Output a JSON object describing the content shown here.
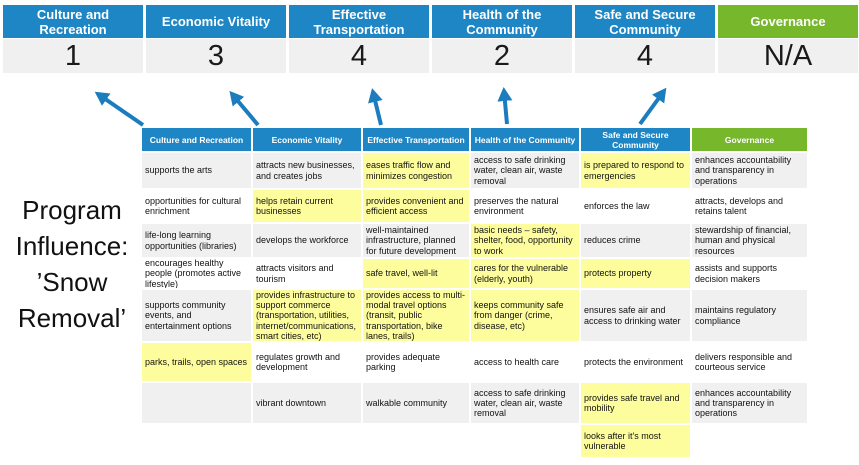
{
  "program_label": "Program Influence: ’Snow Removal’",
  "summary": {
    "columns": [
      {
        "label": "Culture and Recreation",
        "score": "1",
        "type": "blue"
      },
      {
        "label": "Economic Vitality",
        "score": "3",
        "type": "blue"
      },
      {
        "label": "Effective Transportation",
        "score": "4",
        "type": "blue"
      },
      {
        "label": "Health of the Community",
        "score": "2",
        "type": "blue"
      },
      {
        "label": "Safe and Secure Community",
        "score": "4",
        "type": "blue"
      },
      {
        "label": "Governance",
        "score": "N/A",
        "type": "green"
      }
    ]
  },
  "matrix": {
    "headers": [
      {
        "label": "Culture and Recreation",
        "type": "blue"
      },
      {
        "label": "Economic Vitality",
        "type": "blue"
      },
      {
        "label": "Effective Transportation",
        "type": "blue"
      },
      {
        "label": "Health of the Community",
        "type": "blue"
      },
      {
        "label": "Safe and Secure Community",
        "type": "blue"
      },
      {
        "label": "Governance",
        "type": "green"
      }
    ],
    "rows": [
      {
        "cells": [
          {
            "text": "supports the arts",
            "highlight": false
          },
          {
            "text": "attracts new businesses, and creates jobs",
            "highlight": false
          },
          {
            "text": "eases traffic flow and minimizes congestion",
            "highlight": true
          },
          {
            "text": "access to safe drinking water, clean air, waste removal",
            "highlight": false
          },
          {
            "text": "is prepared to respond to emergencies",
            "highlight": true
          },
          {
            "text": "enhances accountability and transparency in operations",
            "highlight": false
          }
        ]
      },
      {
        "cells": [
          {
            "text": "opportunities for cultural enrichment",
            "highlight": false
          },
          {
            "text": "helps retain current businesses",
            "highlight": true
          },
          {
            "text": "provides convenient and efficient access",
            "highlight": true
          },
          {
            "text": "preserves the natural environment",
            "highlight": false
          },
          {
            "text": "enforces the law",
            "highlight": false
          },
          {
            "text": "attracts, develops and retains talent",
            "highlight": false
          }
        ]
      },
      {
        "cells": [
          {
            "text": "life-long learning opportunities (libraries)",
            "highlight": false
          },
          {
            "text": "develops the workforce",
            "highlight": false
          },
          {
            "text": "well-maintained infrastructure, planned for future development",
            "highlight": false
          },
          {
            "text": "basic needs – safety, shelter, food, opportunity to work",
            "highlight": true
          },
          {
            "text": "reduces crime",
            "highlight": false
          },
          {
            "text": "stewardship of financial, human and physical resources",
            "highlight": false
          }
        ]
      },
      {
        "cells": [
          {
            "text": "encourages healthy people (promotes active lifestyle)",
            "highlight": false
          },
          {
            "text": "attracts visitors and tourism",
            "highlight": false
          },
          {
            "text": "safe travel, well-lit",
            "highlight": true
          },
          {
            "text": "cares for the vulnerable (elderly, youth)",
            "highlight": true
          },
          {
            "text": "protects property",
            "highlight": true
          },
          {
            "text": "assists and supports decision makers",
            "highlight": false
          }
        ]
      },
      {
        "cells": [
          {
            "text": "supports community events, and entertainment options",
            "highlight": false
          },
          {
            "text": "provides infrastructure to support commerce (transportation, utilities, internet/communications, smart cities, etc)",
            "highlight": true
          },
          {
            "text": "provides access to multi-modal travel options (transit, public transportation, bike lanes, trails)",
            "highlight": true
          },
          {
            "text": "keeps community safe from danger (crime, disease, etc)",
            "highlight": true
          },
          {
            "text": "ensures safe air and access to drinking water",
            "highlight": false
          },
          {
            "text": "maintains regulatory compliance",
            "highlight": false
          }
        ]
      },
      {
        "cells": [
          {
            "text": "parks, trails, open spaces",
            "highlight": true
          },
          {
            "text": "regulates growth and development",
            "highlight": false
          },
          {
            "text": "provides adequate parking",
            "highlight": false
          },
          {
            "text": "access to health care",
            "highlight": false
          },
          {
            "text": "protects the environment",
            "highlight": false
          },
          {
            "text": "delivers responsible and courteous service",
            "highlight": false
          }
        ]
      },
      {
        "cells": [
          {
            "text": "",
            "highlight": false
          },
          {
            "text": "vibrant downtown",
            "highlight": false
          },
          {
            "text": "walkable community",
            "highlight": false
          },
          {
            "text": "access to safe drinking water, clean air, waste removal",
            "highlight": false
          },
          {
            "text": "provides safe travel and mobility",
            "highlight": true
          },
          {
            "text": "enhances accountability and transparency in operations",
            "highlight": false
          }
        ]
      },
      {
        "cells": [
          {
            "text": "",
            "highlight": false
          },
          {
            "text": "",
            "highlight": false
          },
          {
            "text": "",
            "highlight": false
          },
          {
            "text": "",
            "highlight": false
          },
          {
            "text": "looks after it's most vulnerable",
            "highlight": true
          },
          {
            "text": "",
            "highlight": false
          }
        ]
      }
    ]
  },
  "colors": {
    "header_blue": "#1E86C4",
    "header_green": "#76B72B",
    "highlight_yellow": "#FDFD9D",
    "row_alt_gray": "#F0F0F0",
    "score_row_gray": "#F0F0F0",
    "arrow_blue": "#1B7CBE"
  }
}
